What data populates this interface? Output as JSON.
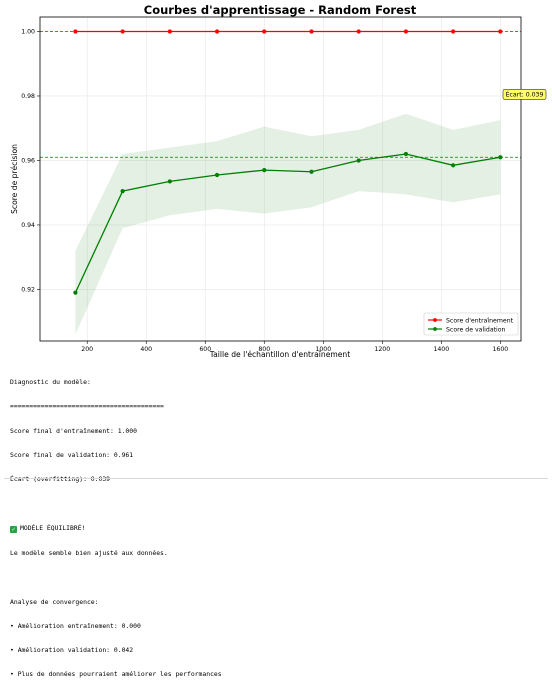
{
  "chart_data": {
    "type": "line",
    "title": "Courbes d'apprentissage - Random Forest",
    "xlabel": "Taille de l'échantillon d'entraînement",
    "ylabel": "Score de précision",
    "xlim": [
      40,
      1670
    ],
    "ylim": [
      0.904,
      1.0045
    ],
    "x_ticks": [
      200,
      400,
      600,
      800,
      1000,
      1200,
      1400,
      1600
    ],
    "y_ticks": [
      0.92,
      0.94,
      0.96,
      0.98,
      1.0
    ],
    "y_tick_labels": [
      "0.92",
      "0.94",
      "0.96",
      "0.98",
      "1.00"
    ],
    "grid": true,
    "legend_position": "bottom-right",
    "x": [
      160,
      320,
      480,
      640,
      800,
      960,
      1120,
      1280,
      1440,
      1600
    ],
    "series": [
      {
        "name": "Score d'entraînement",
        "color": "#ff0000",
        "values": [
          1.0,
          1.0,
          1.0,
          1.0,
          1.0,
          1.0,
          1.0,
          1.0,
          1.0,
          1.0
        ]
      },
      {
        "name": "Score de validation",
        "color": "#007f00",
        "values": [
          0.919,
          0.9505,
          0.9535,
          0.9555,
          0.957,
          0.9565,
          0.96,
          0.962,
          0.9585,
          0.961
        ],
        "band_lower": [
          0.906,
          0.939,
          0.943,
          0.945,
          0.9435,
          0.9455,
          0.9505,
          0.9495,
          0.947,
          0.9495
        ],
        "band_upper": [
          0.932,
          0.962,
          0.964,
          0.966,
          0.9705,
          0.9675,
          0.9695,
          0.9745,
          0.9695,
          0.9725
        ]
      }
    ],
    "reference_lines": [
      {
        "y": 1.0,
        "color": "#ff0000",
        "style": "dashed"
      },
      {
        "y": 0.961,
        "color": "#007f00",
        "style": "dashed"
      }
    ],
    "annotation": {
      "text": "Écart: 0.039",
      "y": 0.9805,
      "background": "#ffff66"
    }
  },
  "diagnostic": {
    "header": "Diagnostic du modèle:",
    "separator": "========================================",
    "final_train": "Score final d'entraînement: 1.000",
    "final_val": "Score final de validation: 0.961",
    "gap": "Écart (overfitting): 0.039",
    "status_icon": "check-mark-icon",
    "status": "MODÈLE ÉQUILIBRÉ!",
    "status_detail": "Le modèle semble bien ajusté aux données.",
    "convergence_header": "Analyse de convergence:",
    "conv_train": "• Amélioration entraînement: 0.000",
    "conv_val": "• Amélioration validation: 0.042",
    "conv_note": "• Plus de données pourraient améliorer les performances"
  }
}
